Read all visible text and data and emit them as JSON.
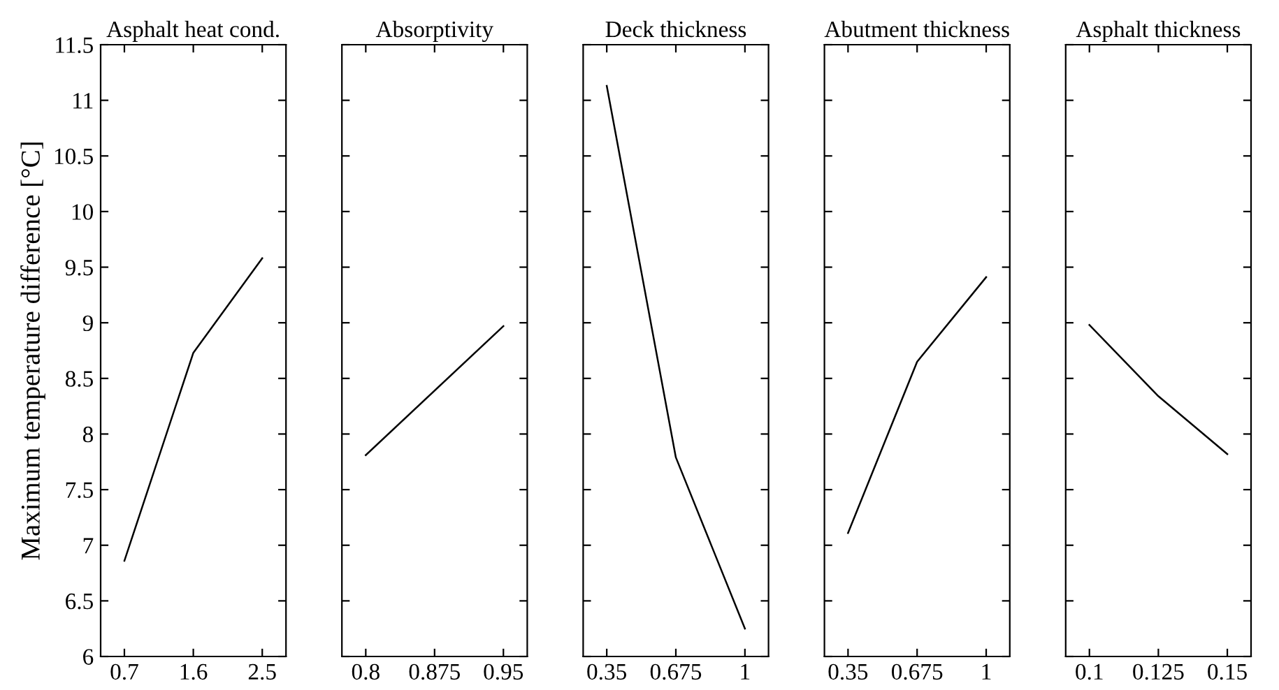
{
  "chart_data": [
    {
      "type": "line",
      "title": "Asphalt heat cond.",
      "ylabel": "Maximum temperature difference [°C]",
      "x": [
        0.7,
        1.6,
        2.5
      ],
      "values": [
        6.86,
        8.73,
        9.58
      ],
      "color": "#000000",
      "xlim": [
        0.39,
        2.81
      ],
      "xticks": [
        0.7,
        1.6,
        2.5
      ],
      "ylim": [
        6,
        11.5
      ],
      "yticks": [
        6,
        6.5,
        7,
        7.5,
        8,
        8.5,
        9,
        9.5,
        10,
        10.5,
        11,
        11.5
      ],
      "grid": false
    },
    {
      "type": "line",
      "title": "Absorptivity",
      "x": [
        0.8,
        0.95
      ],
      "values": [
        7.81,
        8.97
      ],
      "color": "#000000",
      "xlim": [
        0.774,
        0.976
      ],
      "xticks": [
        0.8,
        0.875,
        0.95
      ],
      "ylim": [
        6,
        11.5
      ],
      "tick_labels": "x",
      "grid": false
    },
    {
      "type": "line",
      "title": "Deck thickness",
      "x": [
        0.35,
        0.675,
        1
      ],
      "values": [
        11.13,
        7.79,
        6.25
      ],
      "color": "#000000",
      "xlim": [
        0.239,
        1.111
      ],
      "xticks": [
        0.35,
        0.675,
        1
      ],
      "ylim": [
        6,
        11.5
      ],
      "tick_labels": "x",
      "grid": false
    },
    {
      "type": "line",
      "title": "Abutment thickness",
      "x": [
        0.35,
        0.675,
        1
      ],
      "values": [
        7.11,
        8.65,
        9.41
      ],
      "color": "#000000",
      "xlim": [
        0.239,
        1.111
      ],
      "xticks": [
        0.35,
        0.675,
        1
      ],
      "ylim": [
        6,
        11.5
      ],
      "tick_labels": "x",
      "grid": false
    },
    {
      "type": "line",
      "title": "Asphalt thickness",
      "x": [
        0.1,
        0.125,
        0.15
      ],
      "values": [
        8.98,
        8.34,
        7.82
      ],
      "color": "#000000",
      "xlim": [
        0.0914,
        0.1586
      ],
      "xticks": [
        0.1,
        0.125,
        0.15
      ],
      "ylim": [
        6,
        11.5
      ],
      "tick_labels": "x",
      "grid": false
    }
  ]
}
